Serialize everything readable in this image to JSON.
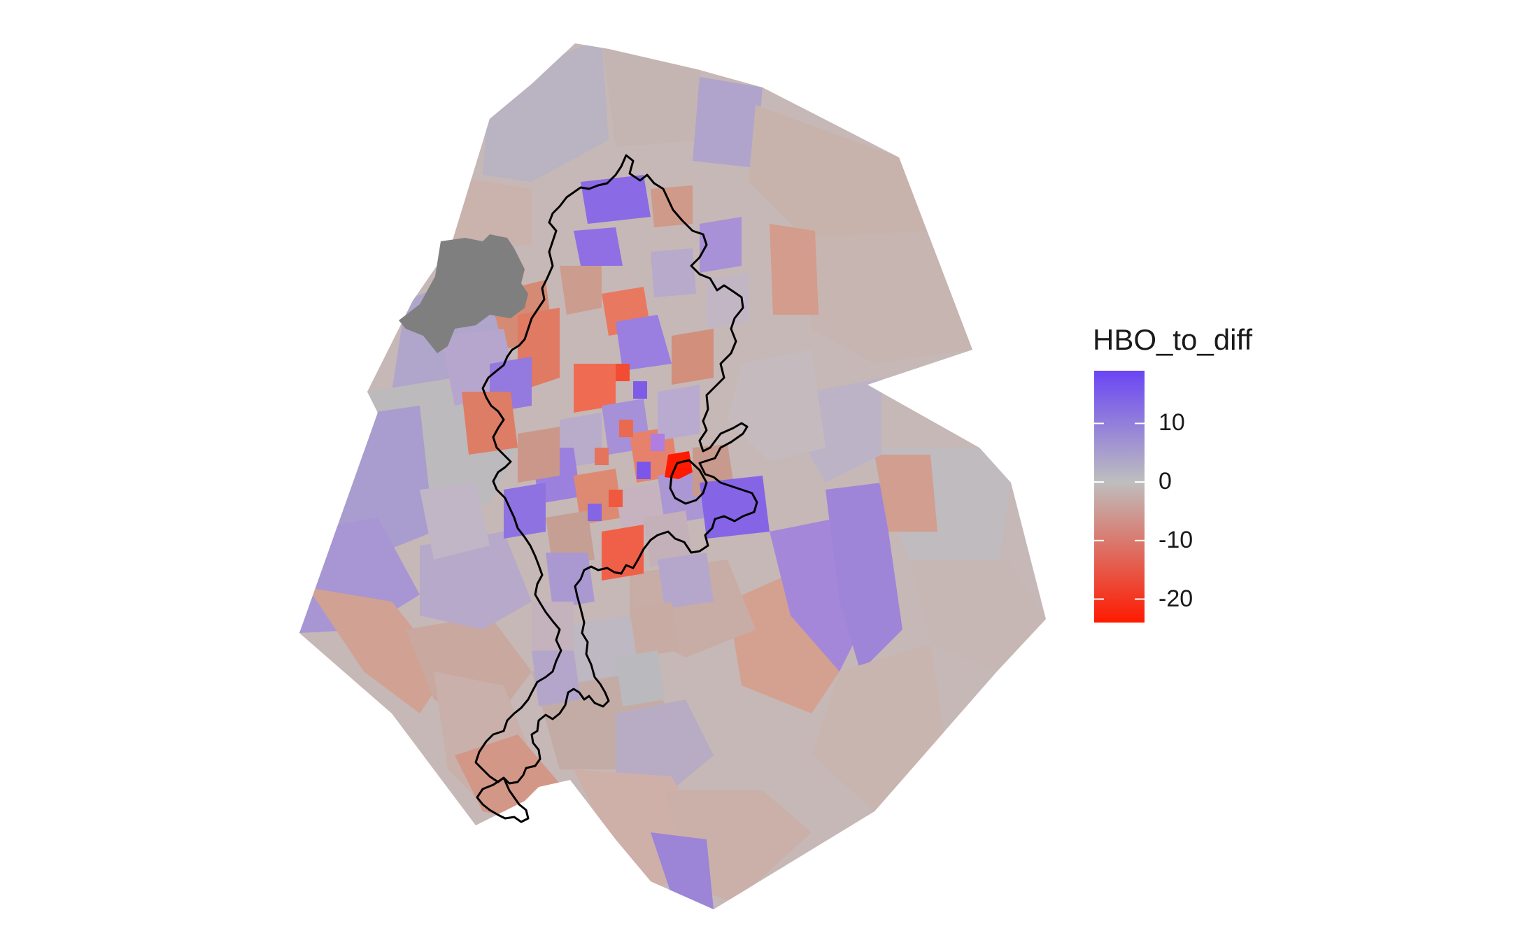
{
  "legend": {
    "title": "HBO_to_diff",
    "ticks": [
      "10",
      "0",
      "-10",
      "-20"
    ],
    "tick_values": [
      10,
      0,
      -10,
      -20
    ],
    "range": [
      -24,
      19
    ],
    "colors": {
      "high": "#6a45f5",
      "mid": "#bebebe",
      "low": "#ff1a00"
    }
  },
  "map": {
    "na_color": "#7f7f7f",
    "boundary_color": "#000000"
  }
}
